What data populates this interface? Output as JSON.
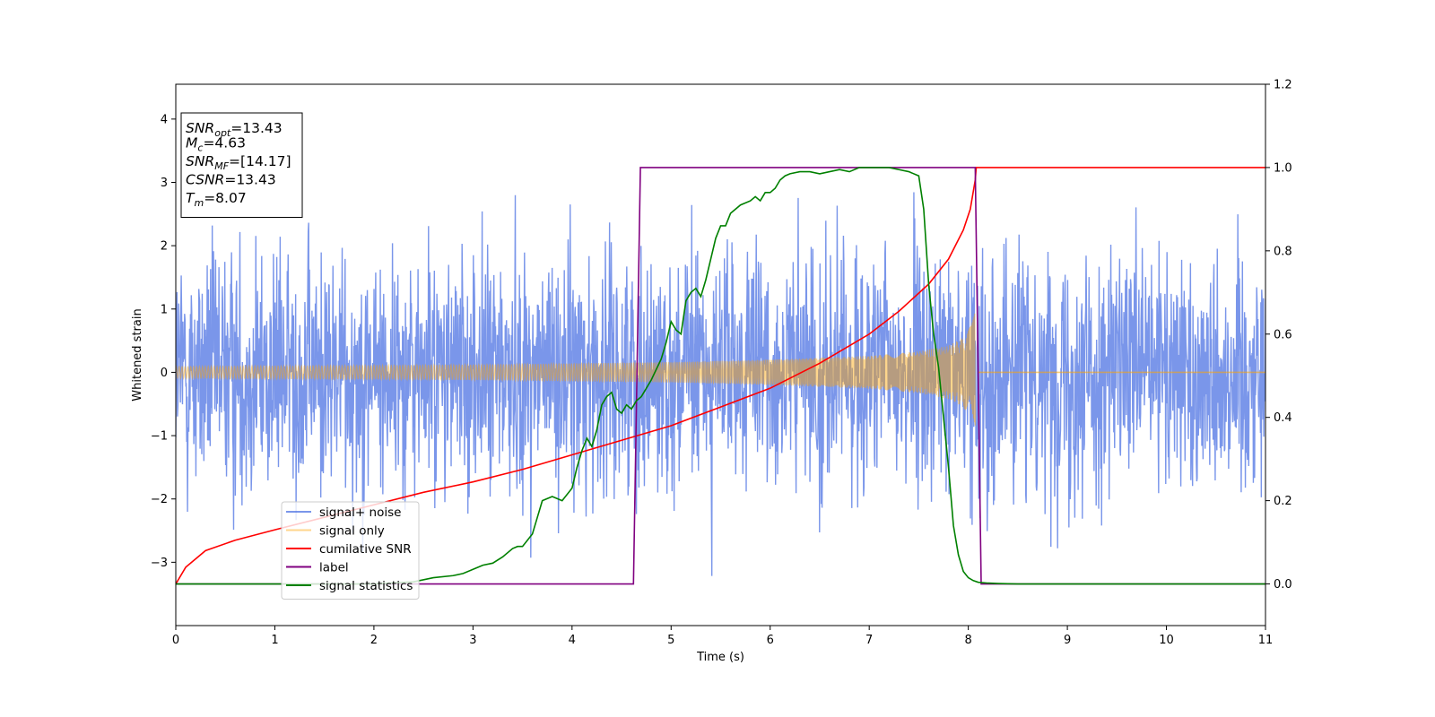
{
  "chart_data": {
    "type": "line",
    "xlabel": "Time (s)",
    "ylabel": "Whitened strain",
    "xlim": [
      0,
      11
    ],
    "ylim_left": [
      -4,
      4.55
    ],
    "ylim_right": [
      -0.1,
      1.2
    ],
    "x_ticks": [
      0,
      1,
      2,
      3,
      4,
      5,
      6,
      7,
      8,
      9,
      10,
      11
    ],
    "y_ticks_left": [
      -3,
      -2,
      -1,
      0,
      1,
      2,
      3,
      4
    ],
    "y_ticks_right": [
      0.0,
      0.2,
      0.4,
      0.6,
      0.8,
      1.0,
      1.2
    ],
    "grid": false,
    "legend_position": "lower-left",
    "annotation_box": {
      "position": "top-left",
      "lines": [
        {
          "sym": "SNR",
          "sub": "opt",
          "value": "=13.43"
        },
        {
          "sym": "M",
          "sub": "c",
          "value": "=4.63"
        },
        {
          "sym": "SNR",
          "sub": "MF",
          "value": "=[14.17]"
        },
        {
          "sym": "CSNR",
          "sub": "",
          "value": "=13.43"
        },
        {
          "sym": "T",
          "sub": "m",
          "value": "=8.07"
        }
      ]
    },
    "series": [
      {
        "name": "signal+ noise",
        "axis": "left",
        "color": "#4169e1",
        "opacity": 0.7,
        "kind": "noise",
        "noise_sigma": 1.0,
        "range": [
          -3.45,
          3.2
        ]
      },
      {
        "name": "signal only",
        "axis": "left",
        "color": "#ffa500",
        "opacity": 0.45,
        "kind": "chirp_envelope",
        "envelope": [
          [
            0,
            0.09
          ],
          [
            1,
            0.1
          ],
          [
            2,
            0.11
          ],
          [
            3,
            0.12
          ],
          [
            4,
            0.14
          ],
          [
            5,
            0.16
          ],
          [
            6,
            0.2
          ],
          [
            7,
            0.26
          ],
          [
            7.5,
            0.33
          ],
          [
            7.8,
            0.42
          ],
          [
            7.95,
            0.55
          ],
          [
            8.03,
            0.75
          ],
          [
            8.07,
            1.05
          ]
        ],
        "after_merger": [
          8.1,
          11,
          0
        ]
      },
      {
        "name": "cumilative SNR",
        "axis": "right",
        "color": "#ff0000",
        "x": [
          0,
          0.1,
          0.3,
          0.6,
          1,
          1.5,
          2,
          2.5,
          3,
          3.5,
          4,
          4.5,
          5,
          5.5,
          6,
          6.5,
          7,
          7.3,
          7.6,
          7.8,
          7.95,
          8.02,
          8.07,
          8.08,
          11
        ],
        "y": [
          0.0,
          0.04,
          0.08,
          0.105,
          0.13,
          0.16,
          0.19,
          0.22,
          0.245,
          0.275,
          0.31,
          0.345,
          0.38,
          0.425,
          0.47,
          0.53,
          0.6,
          0.655,
          0.72,
          0.78,
          0.85,
          0.9,
          0.97,
          1.0,
          1.0
        ]
      },
      {
        "name": "label",
        "axis": "right",
        "color": "#800080",
        "x": [
          0,
          4.62,
          4.69,
          8.07,
          8.13,
          11
        ],
        "y": [
          0,
          0,
          1,
          1,
          0,
          0
        ]
      },
      {
        "name": "signal statistics",
        "axis": "right",
        "color": "#008000",
        "x": [
          0,
          1,
          2,
          2.4,
          2.6,
          2.8,
          2.9,
          3.0,
          3.1,
          3.2,
          3.3,
          3.4,
          3.45,
          3.5,
          3.6,
          3.65,
          3.7,
          3.8,
          3.9,
          4.0,
          4.05,
          4.1,
          4.15,
          4.2,
          4.25,
          4.3,
          4.35,
          4.4,
          4.45,
          4.5,
          4.55,
          4.6,
          4.65,
          4.7,
          4.75,
          4.8,
          4.9,
          4.95,
          5.0,
          5.05,
          5.1,
          5.15,
          5.2,
          5.25,
          5.3,
          5.35,
          5.4,
          5.45,
          5.5,
          5.55,
          5.6,
          5.7,
          5.8,
          5.85,
          5.9,
          5.95,
          6.0,
          6.05,
          6.1,
          6.15,
          6.2,
          6.3,
          6.4,
          6.5,
          6.6,
          6.7,
          6.8,
          6.9,
          7.0,
          7.1,
          7.2,
          7.3,
          7.4,
          7.5,
          7.55,
          7.6,
          7.65,
          7.7,
          7.75,
          7.8,
          7.85,
          7.9,
          7.95,
          8.0,
          8.05,
          8.1,
          8.2,
          8.3,
          8.5,
          9,
          10,
          11
        ],
        "y": [
          0.0,
          0.0,
          0.0,
          0.005,
          0.015,
          0.02,
          0.025,
          0.035,
          0.045,
          0.05,
          0.065,
          0.085,
          0.09,
          0.09,
          0.12,
          0.16,
          0.2,
          0.21,
          0.2,
          0.23,
          0.28,
          0.32,
          0.35,
          0.33,
          0.37,
          0.43,
          0.45,
          0.46,
          0.42,
          0.41,
          0.43,
          0.42,
          0.44,
          0.45,
          0.47,
          0.49,
          0.54,
          0.58,
          0.63,
          0.61,
          0.6,
          0.68,
          0.7,
          0.71,
          0.69,
          0.73,
          0.78,
          0.83,
          0.86,
          0.86,
          0.89,
          0.91,
          0.92,
          0.93,
          0.92,
          0.94,
          0.94,
          0.95,
          0.97,
          0.98,
          0.985,
          0.99,
          0.99,
          0.985,
          0.99,
          0.995,
          0.99,
          1.0,
          1.0,
          1.0,
          1.0,
          0.995,
          0.99,
          0.98,
          0.9,
          0.72,
          0.6,
          0.52,
          0.4,
          0.28,
          0.14,
          0.07,
          0.03,
          0.015,
          0.008,
          0.004,
          0.002,
          0.001,
          0.0,
          0.0,
          0.0,
          0.0
        ]
      }
    ]
  }
}
